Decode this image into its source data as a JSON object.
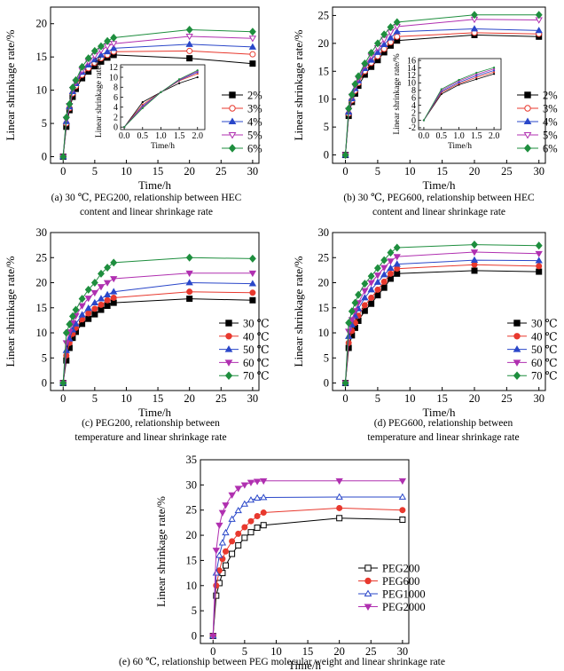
{
  "chart_data": [
    {
      "id": "a",
      "type": "line",
      "xlabel": "Time/h",
      "ylabel": "Linear shrinkage rate/%",
      "xlim": [
        -2,
        31
      ],
      "ylim": [
        -1,
        22.5
      ],
      "xticks": [
        0,
        5,
        10,
        15,
        20,
        25,
        30
      ],
      "yticks": [
        0,
        5,
        10,
        15,
        20
      ],
      "legend": "right",
      "caption": [
        "(a) 30 ℃, PEG200, relationship between HEC",
        "content and linear shrinkage rate"
      ],
      "x": [
        0,
        0.5,
        1,
        1.5,
        2,
        3,
        4,
        5,
        6,
        7,
        8,
        20,
        30
      ],
      "series": [
        {
          "name": "2%",
          "marker": "square-filled",
          "color": "#000000",
          "values": [
            0,
            4.5,
            7.0,
            9.0,
            10.2,
            11.8,
            12.8,
            13.6,
            14.3,
            14.9,
            15.3,
            14.8,
            14.0
          ]
        },
        {
          "name": "3%",
          "marker": "circle-open",
          "color": "#e8392e",
          "values": [
            0,
            5.0,
            7.3,
            9.5,
            10.6,
            12.3,
            13.3,
            14.1,
            14.8,
            15.3,
            15.8,
            15.9,
            15.4
          ]
        },
        {
          "name": "4%",
          "marker": "triangle-filled",
          "color": "#2a47c9",
          "values": [
            0,
            5.3,
            7.5,
            9.8,
            11.0,
            12.7,
            13.8,
            14.6,
            15.3,
            15.8,
            16.3,
            16.9,
            16.5
          ]
        },
        {
          "name": "5%",
          "marker": "triangle-down-open",
          "color": "#b030b0",
          "values": [
            0,
            5.6,
            7.7,
            10.1,
            11.2,
            13.0,
            14.3,
            15.2,
            16.0,
            16.6,
            17.0,
            18.1,
            17.8
          ]
        },
        {
          "name": "6%",
          "marker": "diamond-filled",
          "color": "#1e8e3e",
          "values": [
            0,
            5.9,
            7.9,
            10.4,
            11.5,
            13.5,
            14.8,
            15.9,
            16.6,
            17.4,
            17.9,
            19.1,
            18.8
          ]
        }
      ],
      "inset": {
        "xlabel": "Time/h",
        "ylabel": "Linear shrinkage rate/%",
        "xlim": [
          -0.1,
          2.2
        ],
        "ylim": [
          -0.5,
          12.5
        ],
        "xticks": [
          "0.0",
          "0.5",
          "1.0",
          "1.5",
          "2.0"
        ],
        "yticks": [
          0,
          2,
          4,
          6,
          8,
          10,
          12
        ],
        "x": [
          0,
          0.5,
          1,
          1.5,
          2
        ],
        "values": [
          [
            0,
            5.0,
            7.0,
            8.8,
            10.0
          ],
          [
            0,
            4.5,
            7.0,
            9.3,
            10.7
          ],
          [
            0,
            4.2,
            7.0,
            9.4,
            11.0
          ],
          [
            0,
            4.0,
            7.0,
            9.5,
            11.2
          ],
          [
            0,
            3.8,
            7.0,
            9.6,
            11.4
          ]
        ]
      }
    },
    {
      "id": "b",
      "type": "line",
      "xlabel": "Time/h",
      "ylabel": "Linear shrinkage rate/%",
      "xlim": [
        -2,
        31
      ],
      "ylim": [
        -1.5,
        26.5
      ],
      "xticks": [
        0,
        5,
        10,
        15,
        20,
        25,
        30
      ],
      "yticks": [
        0,
        5,
        10,
        15,
        20,
        25
      ],
      "legend": "right",
      "caption": [
        "(b) 30 ℃, PEG600, relationship between HEC",
        "content and linear shrinkage rate"
      ],
      "x": [
        0,
        0.5,
        1,
        1.5,
        2,
        3,
        4,
        5,
        6,
        7,
        8,
        20,
        30
      ],
      "series": [
        {
          "name": "2%",
          "marker": "square-filled",
          "color": "#000000",
          "values": [
            0,
            7.0,
            9.5,
            11.0,
            12.4,
            14.4,
            15.8,
            17.0,
            18.4,
            19.6,
            20.5,
            21.5,
            21.2
          ]
        },
        {
          "name": "3%",
          "marker": "circle-open",
          "color": "#e8392e",
          "values": [
            0,
            7.4,
            9.8,
            11.5,
            12.9,
            15.0,
            16.5,
            17.7,
            19.0,
            20.2,
            21.2,
            21.9,
            21.7
          ]
        },
        {
          "name": "4%",
          "marker": "triangle-filled",
          "color": "#2a47c9",
          "values": [
            0,
            7.7,
            10.1,
            11.9,
            13.3,
            15.5,
            17.0,
            18.4,
            19.8,
            21.0,
            22.1,
            22.6,
            22.3
          ]
        },
        {
          "name": "5%",
          "marker": "triangle-down-open",
          "color": "#b030b0",
          "values": [
            0,
            8.0,
            10.5,
            12.3,
            13.7,
            16.0,
            17.7,
            19.2,
            20.7,
            22.0,
            23.0,
            24.3,
            24.2
          ]
        },
        {
          "name": "6%",
          "marker": "diamond-filled",
          "color": "#1e8e3e",
          "values": [
            0,
            8.3,
            10.8,
            12.7,
            14.1,
            16.4,
            18.3,
            20.0,
            21.6,
            22.9,
            23.8,
            25.1,
            25.1
          ]
        }
      ],
      "inset": {
        "xlabel": "Time/h",
        "ylabel": "Linear shrinkage rate/%",
        "xlim": [
          -0.15,
          2.2
        ],
        "ylim": [
          -2.5,
          16.5
        ],
        "xticks": [
          "0.0",
          "0.5",
          "1.0",
          "1.5",
          "2.0"
        ],
        "yticks": [
          -2,
          0,
          2,
          4,
          6,
          8,
          10,
          12,
          14,
          16
        ],
        "x": [
          0,
          0.5,
          1,
          1.5,
          2
        ],
        "values": [
          [
            0,
            7.0,
            9.5,
            11.0,
            12.4
          ],
          [
            0,
            7.4,
            9.8,
            11.5,
            12.9
          ],
          [
            0,
            7.7,
            10.1,
            11.9,
            13.3
          ],
          [
            0,
            8.0,
            10.5,
            12.3,
            13.7
          ],
          [
            0,
            8.3,
            10.8,
            12.7,
            14.1
          ]
        ]
      }
    },
    {
      "id": "c",
      "type": "line",
      "xlabel": "Time/h",
      "ylabel": "Linear shrinkage rate/%",
      "xlim": [
        -2,
        31
      ],
      "ylim": [
        -1.5,
        30
      ],
      "xticks": [
        0,
        5,
        10,
        15,
        20,
        25,
        30
      ],
      "yticks": [
        0,
        5,
        10,
        15,
        20,
        25,
        30
      ],
      "legend": "bottom-right",
      "caption": [
        "(c) PEG200, relationship between",
        "temperature and linear shrinkage rate"
      ],
      "x": [
        0,
        0.5,
        1,
        1.5,
        2,
        3,
        4,
        5,
        6,
        7,
        8,
        20,
        30
      ],
      "series": [
        {
          "name": "30 ℃",
          "marker": "square-filled",
          "color": "#000000",
          "values": [
            0,
            4.5,
            7.0,
            9.0,
            10.2,
            11.8,
            12.8,
            13.7,
            14.6,
            15.4,
            16.0,
            16.8,
            16.5
          ]
        },
        {
          "name": "40 ℃",
          "marker": "circle-filled",
          "color": "#e8392e",
          "values": [
            0,
            5.5,
            8.0,
            9.8,
            11.0,
            12.7,
            13.9,
            14.8,
            15.6,
            16.5,
            17.0,
            18.2,
            18.0
          ]
        },
        {
          "name": "50 ℃",
          "marker": "triangle-filled",
          "color": "#2a47c9",
          "values": [
            0,
            6.5,
            8.8,
            10.6,
            11.8,
            13.6,
            14.9,
            16.0,
            16.8,
            17.6,
            18.2,
            20.0,
            19.8
          ]
        },
        {
          "name": "60 ℃",
          "marker": "triangle-down-filled",
          "color": "#b030b0",
          "values": [
            0,
            8.0,
            10.2,
            12.0,
            13.4,
            15.4,
            16.9,
            18.0,
            19.2,
            20.0,
            20.8,
            21.9,
            21.9
          ]
        },
        {
          "name": "70 ℃",
          "marker": "diamond-filled",
          "color": "#1e8e3e",
          "values": [
            0,
            10.0,
            11.7,
            13.3,
            14.6,
            16.8,
            18.6,
            20.0,
            21.8,
            23.0,
            24.0,
            25.0,
            24.8
          ]
        }
      ]
    },
    {
      "id": "d",
      "type": "line",
      "xlabel": "Time/h",
      "ylabel": "Linear shrinkage rate/%",
      "xlim": [
        -2,
        31
      ],
      "ylim": [
        -1.5,
        30
      ],
      "xticks": [
        0,
        5,
        10,
        15,
        20,
        25,
        30
      ],
      "yticks": [
        0,
        5,
        10,
        15,
        20,
        25,
        30
      ],
      "legend": "bottom-right",
      "caption": [
        "(d) PEG600, relationship between",
        "temperature and linear shrinkage rate"
      ],
      "x": [
        0,
        0.5,
        1,
        1.5,
        2,
        3,
        4,
        5,
        6,
        7,
        8,
        20,
        30
      ],
      "series": [
        {
          "name": "30 ℃",
          "marker": "square-filled",
          "color": "#000000",
          "values": [
            0,
            7.0,
            9.5,
            11.0,
            12.4,
            14.4,
            15.8,
            17.5,
            19.0,
            20.8,
            21.8,
            22.4,
            22.2
          ]
        },
        {
          "name": "40 ℃",
          "marker": "circle-filled",
          "color": "#e8392e",
          "values": [
            0,
            8.0,
            10.4,
            12.0,
            13.4,
            15.5,
            17.0,
            18.6,
            20.2,
            21.8,
            22.8,
            23.6,
            23.3
          ]
        },
        {
          "name": "50 ℃",
          "marker": "triangle-filled",
          "color": "#2a47c9",
          "values": [
            0,
            9.3,
            11.6,
            13.4,
            14.8,
            17.0,
            18.6,
            20.1,
            21.6,
            22.9,
            23.7,
            24.5,
            24.4
          ]
        },
        {
          "name": "60 ℃",
          "marker": "triangle-down-filled",
          "color": "#b030b0",
          "values": [
            0,
            10.3,
            12.6,
            14.4,
            16.0,
            18.4,
            20.0,
            21.5,
            23.0,
            24.3,
            25.2,
            26.1,
            25.8
          ]
        },
        {
          "name": "70 ℃",
          "marker": "diamond-filled",
          "color": "#1e8e3e",
          "values": [
            0,
            12.0,
            14.3,
            16.0,
            17.6,
            19.8,
            21.3,
            22.9,
            24.5,
            26.0,
            27.0,
            27.6,
            27.4
          ]
        }
      ]
    },
    {
      "id": "e",
      "type": "line",
      "xlabel": "Time/h",
      "ylabel": "Linear shrinkage rate/%",
      "xlim": [
        -2,
        31
      ],
      "ylim": [
        -1.5,
        35
      ],
      "xticks": [
        0,
        5,
        10,
        15,
        20,
        25,
        30
      ],
      "yticks": [
        0,
        5,
        10,
        15,
        20,
        25,
        30,
        35
      ],
      "legend": "bottom-right",
      "caption": [
        "(e) 60 ℃, relationship between PEG molecular weight and linear shrinkage rate"
      ],
      "x": [
        0,
        0.5,
        1,
        1.5,
        2,
        3,
        4,
        5,
        6,
        7,
        8,
        20,
        30
      ],
      "series": [
        {
          "name": "PEG200",
          "marker": "square-open",
          "color": "#000000",
          "values": [
            0,
            8.0,
            10.5,
            12.5,
            14.0,
            16.3,
            18.0,
            19.5,
            20.6,
            21.5,
            22.0,
            23.4,
            23.1
          ]
        },
        {
          "name": "PEG600",
          "marker": "circle-filled",
          "color": "#e8392e",
          "values": [
            0,
            10.0,
            13.0,
            15.3,
            16.8,
            18.8,
            20.3,
            21.6,
            22.8,
            23.8,
            24.5,
            25.4,
            25.0
          ]
        },
        {
          "name": "PEG1000",
          "marker": "triangle-open",
          "color": "#2a47c9",
          "values": [
            0,
            12.5,
            16.0,
            18.5,
            20.5,
            23.2,
            24.9,
            26.2,
            27.0,
            27.4,
            27.5,
            27.6,
            27.6
          ]
        },
        {
          "name": "PEG2000",
          "marker": "triangle-down-filled",
          "color": "#b030b0",
          "values": [
            0,
            17.0,
            22.0,
            24.5,
            26.0,
            28.0,
            29.3,
            30.0,
            30.5,
            30.7,
            30.8,
            30.8,
            30.8
          ]
        }
      ]
    }
  ]
}
